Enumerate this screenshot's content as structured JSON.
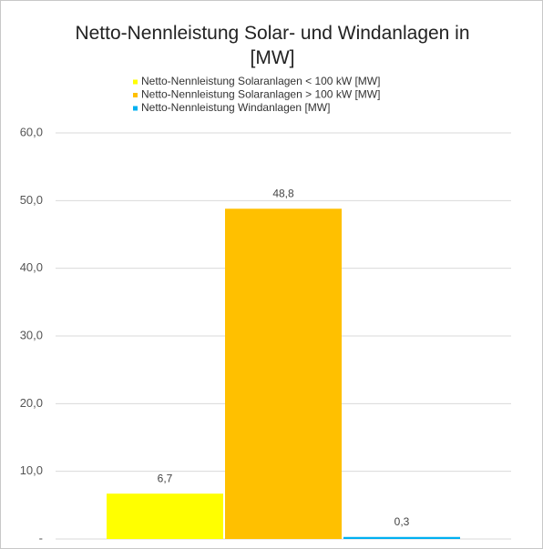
{
  "chart_data": {
    "type": "bar",
    "title": "Netto-Nennleistung Solar- und Windanlagen in [MW]",
    "categories": [
      null
    ],
    "series": [
      {
        "name": "Netto-Nennleistung Solaranlagen < 100 kW [MW]",
        "color": "#ffff00",
        "values": [
          6.7
        ],
        "value_labels": [
          "6,7"
        ]
      },
      {
        "name": "Netto-Nennleistung Solaranlagen > 100 kW [MW]",
        "color": "#ffc000",
        "values": [
          48.8
        ],
        "value_labels": [
          "48,8"
        ]
      },
      {
        "name": "Netto-Nennleistung Windanlagen [MW]",
        "color": "#00b0f0",
        "values": [
          0.3
        ],
        "value_labels": [
          "0,3"
        ]
      }
    ],
    "ylim": [
      0,
      60
    ],
    "yticks": [
      {
        "value": 0,
        "label": "-"
      },
      {
        "value": 10,
        "label": "10,0"
      },
      {
        "value": 20,
        "label": "20,0"
      },
      {
        "value": 30,
        "label": "30,0"
      },
      {
        "value": 40,
        "label": "40,0"
      },
      {
        "value": 50,
        "label": "50,0"
      },
      {
        "value": 60,
        "label": "60,0"
      }
    ],
    "grid": true,
    "legend": "top"
  }
}
